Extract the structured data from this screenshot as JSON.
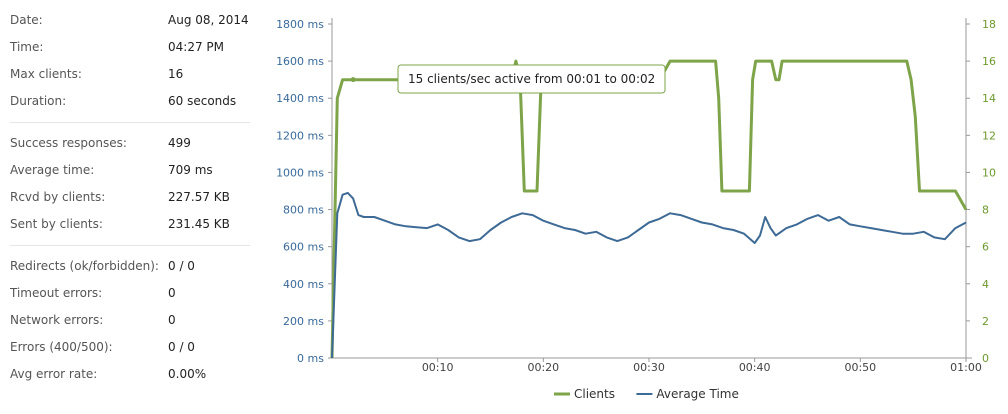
{
  "stats": {
    "groups": [
      [
        {
          "label": "Date:",
          "value": "Aug 08, 2014"
        },
        {
          "label": "Time:",
          "value": "04:27 PM"
        },
        {
          "label": "Max clients:",
          "value": "16"
        },
        {
          "label": "Duration:",
          "value": "60 seconds"
        }
      ],
      [
        {
          "label": "Success responses:",
          "value": "499"
        },
        {
          "label": "Average time:",
          "value": "709 ms"
        },
        {
          "label": "Rcvd by clients:",
          "value": "227.57 KB"
        },
        {
          "label": "Sent by clients:",
          "value": "231.45 KB"
        }
      ],
      [
        {
          "label": "Redirects (ok/forbidden):",
          "value": "0 / 0"
        },
        {
          "label": "Timeout errors:",
          "value": "0"
        },
        {
          "label": "Network errors:",
          "value": "0"
        },
        {
          "label": "Errors (400/500):",
          "value": "0 / 0"
        },
        {
          "label": "Avg error rate:",
          "value": "0.00%"
        }
      ]
    ]
  },
  "chart_data": {
    "type": "line",
    "x_range": [
      0,
      60
    ],
    "x_ticks": [
      10,
      20,
      30,
      40,
      50,
      60
    ],
    "x_tick_labels": [
      "00:10",
      "00:20",
      "00:30",
      "00:40",
      "00:50",
      "01:00"
    ],
    "y_left": {
      "range": [
        0,
        1800
      ],
      "ticks": [
        0,
        200,
        400,
        600,
        800,
        1000,
        1200,
        1400,
        1600,
        1800
      ],
      "unit": "ms"
    },
    "y_right": {
      "range": [
        0,
        18
      ],
      "ticks": [
        0,
        2,
        4,
        6,
        8,
        10,
        12,
        14,
        16,
        18
      ]
    },
    "grid": false,
    "legend_position": "bottom-center",
    "series": [
      {
        "name": "Clients",
        "axis": "right",
        "color": "#7ea44a",
        "x": [
          0,
          0.5,
          1,
          1.5,
          2,
          3,
          4,
          6,
          8,
          10,
          12,
          14,
          16,
          16.8,
          17,
          17.4,
          17.8,
          18.2,
          18.6,
          19,
          19.4,
          19.8,
          20,
          21,
          22,
          24,
          26,
          28,
          30,
          31,
          32,
          33,
          34,
          35,
          36,
          36.3,
          36.6,
          36.9,
          37.2,
          38,
          39,
          39.5,
          39.8,
          40.1,
          40.4,
          40.8,
          41.2,
          41.6,
          42,
          42.3,
          42.6,
          43,
          44,
          46,
          48,
          50,
          52,
          54,
          54.4,
          54.8,
          55.2,
          55.6,
          56,
          57,
          58,
          59,
          59.5,
          60
        ],
        "y": [
          0,
          14,
          15,
          15,
          15,
          15,
          15,
          15,
          15,
          15,
          15,
          15,
          15,
          15,
          15,
          16,
          15,
          9,
          9,
          9,
          9,
          15,
          15,
          15,
          15,
          15,
          15,
          15,
          15,
          15,
          16,
          16,
          16,
          16,
          16,
          16,
          14,
          9,
          9,
          9,
          9,
          9,
          15,
          16,
          16,
          16,
          16,
          16,
          15,
          15,
          16,
          16,
          16,
          16,
          16,
          16,
          16,
          16,
          16,
          15,
          13,
          9,
          9,
          9,
          9,
          9,
          8.5,
          8
        ]
      },
      {
        "name": "Average Time",
        "axis": "left",
        "color": "#3e6a96",
        "x": [
          0,
          0.5,
          1,
          1.5,
          2,
          2.5,
          3,
          4,
          5,
          6,
          7,
          8,
          9,
          10,
          11,
          12,
          13,
          14,
          15,
          16,
          17,
          18,
          19,
          20,
          21,
          22,
          23,
          24,
          25,
          26,
          27,
          28,
          29,
          30,
          31,
          32,
          33,
          34,
          35,
          36,
          37,
          38,
          39,
          40,
          40.5,
          41,
          41.5,
          42,
          42.5,
          43,
          44,
          45,
          46,
          47,
          48,
          49,
          50,
          51,
          52,
          53,
          54,
          55,
          56,
          57,
          58,
          59,
          60
        ],
        "y": [
          0,
          780,
          880,
          890,
          860,
          770,
          760,
          760,
          740,
          720,
          710,
          705,
          700,
          720,
          690,
          650,
          630,
          640,
          690,
          730,
          760,
          780,
          770,
          740,
          720,
          700,
          690,
          670,
          680,
          650,
          630,
          650,
          690,
          730,
          750,
          780,
          770,
          750,
          730,
          720,
          700,
          690,
          670,
          620,
          660,
          760,
          700,
          660,
          680,
          700,
          720,
          750,
          770,
          740,
          760,
          720,
          710,
          700,
          690,
          680,
          670,
          670,
          680,
          650,
          640,
          700,
          730
        ]
      }
    ],
    "tooltip": {
      "text": "15 clients/sec active from 00:01 to 00:02",
      "series": "Clients",
      "x": 2,
      "y": 15
    }
  }
}
